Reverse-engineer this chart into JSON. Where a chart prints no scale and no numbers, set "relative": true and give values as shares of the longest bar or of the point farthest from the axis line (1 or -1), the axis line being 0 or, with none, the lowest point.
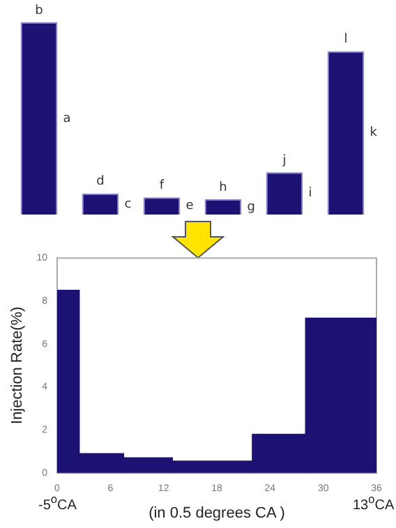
{
  "chart_data": [
    {
      "type": "bar",
      "relative": true,
      "categories": [
        null,
        null,
        null,
        null,
        null,
        null
      ],
      "values": [
        1,
        0.11,
        0.09,
        0.08,
        0.22,
        0.85
      ],
      "color": "#1c1273",
      "grid": false,
      "legend": false,
      "annotations": [
        "a",
        "b",
        "c",
        "d",
        "e",
        "f",
        "g",
        "h",
        "i",
        "j",
        "k",
        "l"
      ]
    },
    {
      "type": "histogram",
      "bins": [
        0,
        2.5,
        7.5,
        13,
        22,
        28,
        36
      ],
      "values": [
        8.5,
        0.9,
        0.7,
        0.55,
        1.8,
        7.2
      ],
      "color": "#1c1273",
      "xlim": [
        0,
        36
      ],
      "xticks": [
        0,
        6,
        12,
        18,
        24,
        30,
        36
      ],
      "ylim": [
        0,
        10
      ],
      "yticks": [
        0,
        2,
        4,
        6,
        8,
        10
      ],
      "ylabel": "Injection Rate(%)",
      "xlabel": "(in 0.5 degrees CA )",
      "grid": false,
      "legend": false,
      "annotations": [
        "-5$^{o}$CA",
        "13$^{o}$CA"
      ]
    }
  ]
}
